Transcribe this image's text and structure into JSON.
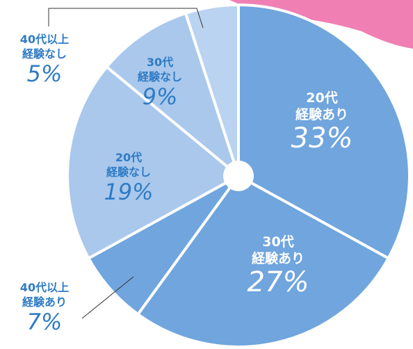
{
  "chart_data": {
    "type": "pie",
    "categories": [
      "20代\n経験あり",
      "30代\n経験あり",
      "40代以上\n経験あり",
      "20代\n経験なし",
      "30代\n経験なし",
      "40代以上\n経験なし"
    ],
    "values": [
      33,
      27,
      7,
      19,
      9,
      5
    ],
    "value_labels": [
      "33%",
      "27%",
      "7%",
      "19%",
      "9%",
      "5%"
    ],
    "colors": [
      "#70a5de",
      "#70a5de",
      "#70a5de",
      "#a9c8ec",
      "#a9c8ec",
      "#bad3f1"
    ]
  }
}
